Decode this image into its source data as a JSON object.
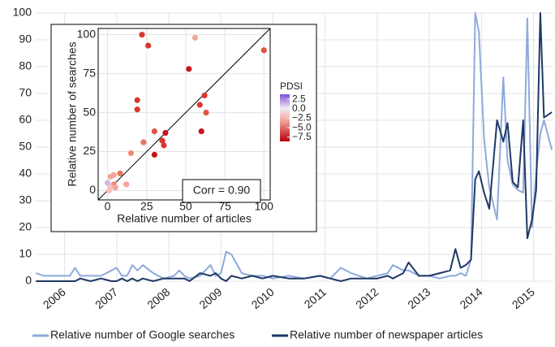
{
  "chart_data": [
    {
      "type": "line",
      "x": [
        2005.45,
        2005.6,
        2005.8,
        2006.0,
        2006.1,
        2006.2,
        2006.3,
        2006.5,
        2006.7,
        2006.9,
        2007.0,
        2007.1,
        2007.2,
        2007.3,
        2007.4,
        2007.5,
        2007.7,
        2007.9,
        2008.1,
        2008.2,
        2008.3,
        2008.4,
        2008.6,
        2008.8,
        2008.9,
        2009.0,
        2009.1,
        2009.2,
        2009.4,
        2009.6,
        2009.8,
        2010.0,
        2010.3,
        2010.6,
        2010.9,
        2011.1,
        2011.3,
        2011.5,
        2011.8,
        2012.0,
        2012.2,
        2012.3,
        2012.5,
        2012.6,
        2012.8,
        2013.0,
        2013.2,
        2013.4,
        2013.5,
        2013.6,
        2013.7,
        2013.8,
        2013.88,
        2013.95,
        2014.05,
        2014.15,
        2014.3,
        2014.42,
        2014.5,
        2014.6,
        2014.7,
        2014.8,
        2014.88,
        2014.97,
        2015.05,
        2015.13,
        2015.2,
        2015.35
      ],
      "series": [
        {
          "name": "Relative number of Google searches",
          "color": "#8eaadb",
          "values": [
            3,
            2,
            2,
            2,
            2,
            5,
            2,
            2,
            2,
            4,
            5,
            2,
            2,
            6,
            4,
            6,
            3,
            1,
            2,
            4,
            2,
            1,
            2,
            6,
            2,
            3,
            11,
            10,
            3,
            2,
            2,
            1,
            2,
            1,
            2,
            1,
            5,
            3,
            1,
            2,
            3,
            6,
            4,
            4,
            2,
            2,
            1,
            2,
            2,
            3,
            2,
            8,
            100,
            93,
            53,
            35,
            23,
            76,
            45,
            36,
            34,
            33,
            98,
            20,
            40,
            55,
            60,
            49
          ]
        },
        {
          "name": "Relative number of newspaper articles",
          "color": "#1f3864",
          "values": [
            0,
            0,
            0,
            0,
            0,
            0,
            1,
            0,
            1,
            0,
            0,
            1,
            0,
            1,
            0,
            1,
            0,
            1,
            1,
            1,
            1,
            0,
            3,
            2,
            3,
            1,
            0,
            2,
            1,
            2,
            1,
            2,
            1,
            1,
            2,
            1,
            0,
            1,
            1,
            1,
            2,
            1,
            3,
            7,
            2,
            2,
            3,
            4,
            12,
            5,
            6,
            8,
            38,
            41,
            33,
            27,
            60,
            52,
            59,
            37,
            35,
            60,
            16,
            23,
            34,
            100,
            61,
            63
          ]
        }
      ],
      "xlim": [
        2005.43,
        2015.38
      ],
      "xticks": [
        2006,
        2007,
        2008,
        2009,
        2010,
        2011,
        2012,
        2013,
        2014,
        2015
      ],
      "ylim": [
        0,
        100
      ],
      "yticks": [
        0,
        10,
        20,
        30,
        40,
        50,
        60,
        70,
        80,
        90,
        100
      ],
      "grid": true,
      "legend": "bottom"
    },
    {
      "type": "scatter",
      "x_label": "Relative number of articles",
      "y_label": "Relative number of searches",
      "annotation": "Corr = 0.90",
      "x": [
        22,
        26,
        56,
        52,
        62,
        59,
        63,
        19,
        19,
        100,
        37,
        35,
        36,
        60,
        30,
        30,
        23,
        15,
        8,
        4,
        2,
        12,
        4,
        2,
        0,
        1,
        5
      ],
      "values": [
        100,
        93,
        98,
        78,
        61,
        55,
        50,
        58,
        52,
        90,
        37,
        32,
        29,
        38,
        38,
        23,
        31,
        24,
        11,
        10,
        9,
        4,
        4,
        2,
        5,
        0,
        2
      ],
      "colors": [
        "#d7372e",
        "#d7372e",
        "#f4a59a",
        "#c4161c",
        "#d7372e",
        "#d7372e",
        "#e0553f",
        "#d7372e",
        "#d7372e",
        "#e0553f",
        "#c4161c",
        "#d7372e",
        "#d7372e",
        "#c4161c",
        "#e0553f",
        "#c4161c",
        "#e8735f",
        "#f08a7a",
        "#e8735f",
        "#f4a59a",
        "#f4a59a",
        "#f4a59a",
        "#f08a7a",
        "#f6c0c0",
        "#d0b8e0",
        "#f6c0c0",
        "#f4a59a"
      ],
      "xlim": [
        -6,
        104
      ],
      "ylim": [
        -6,
        104
      ],
      "xticks": [
        0,
        25,
        50,
        75,
        100
      ],
      "yticks": [
        0,
        25,
        50,
        75,
        100
      ],
      "colorbar": {
        "title": "PDSI",
        "lim": [
          -8.6,
          3.8
        ],
        "ticks": [
          2.5,
          {
            "value": 0,
            "label": "0.0"
          },
          {
            "value": -2.5,
            "label": "−2.5"
          },
          {
            "value": -5,
            "label": "−5.0"
          },
          {
            "value": -7.5,
            "label": "−7.5"
          }
        ]
      }
    }
  ]
}
